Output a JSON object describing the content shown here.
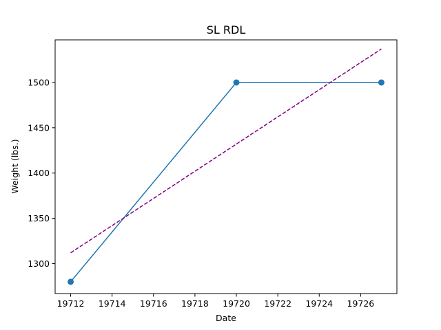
{
  "chart_data": {
    "type": "line",
    "title": "SL RDL",
    "xlabel": "Date",
    "ylabel": "Weight (lbs.)",
    "xlim": [
      19711.25,
      19727.75
    ],
    "ylim": [
      1267,
      1547
    ],
    "x_ticks": [
      19712,
      19714,
      19716,
      19718,
      19720,
      19722,
      19724,
      19726
    ],
    "y_ticks": [
      1300,
      1350,
      1400,
      1450,
      1500
    ],
    "grid": false,
    "series": [
      {
        "kind": "line-marker",
        "color": "#1f77b4",
        "x": [
          19712,
          19720,
          19727
        ],
        "y": [
          1280,
          1500,
          1500
        ]
      },
      {
        "kind": "trend-dashed",
        "color": "#800080",
        "x": [
          19712,
          19727
        ],
        "y": [
          1312,
          1537
        ]
      }
    ]
  }
}
